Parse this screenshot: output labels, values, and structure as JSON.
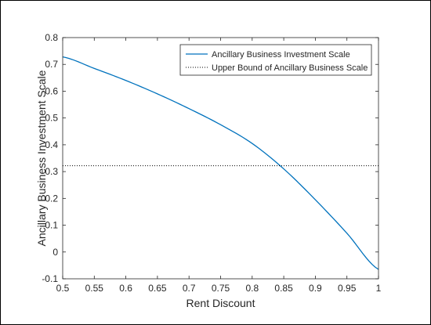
{
  "chart_data": {
    "type": "line",
    "title": "",
    "xlabel": "Rent Discount",
    "ylabel": "Ancillary Business Investment Scale",
    "xlim": [
      0.5,
      1
    ],
    "ylim": [
      -0.1,
      0.8
    ],
    "x_ticks": [
      "0.5",
      "0.55",
      "0.6",
      "0.65",
      "0.7",
      "0.75",
      "0.8",
      "0.85",
      "0.9",
      "0.95",
      "1"
    ],
    "y_ticks": [
      "-0.1",
      "0",
      "0.1",
      "0.2",
      "0.3",
      "0.4",
      "0.5",
      "0.6",
      "0.7",
      "0.8"
    ],
    "grid": false,
    "legend_position": "top-right",
    "series": [
      {
        "name": "Ancillary Business Investment Scale",
        "style": "solid",
        "color": "#0072BD",
        "x": [
          0.5,
          0.55,
          0.6,
          0.65,
          0.7,
          0.75,
          0.8,
          0.85,
          0.9,
          0.95,
          1.0
        ],
        "y": [
          0.728,
          0.685,
          0.64,
          0.59,
          0.535,
          0.475,
          0.405,
          0.31,
          0.195,
          0.07,
          -0.065
        ]
      },
      {
        "name": "Upper Bound of Ancillary Business Scale",
        "style": "dotted",
        "color": "#000000",
        "x": [
          0.5,
          1.0
        ],
        "y": [
          0.322,
          0.322
        ]
      }
    ]
  }
}
